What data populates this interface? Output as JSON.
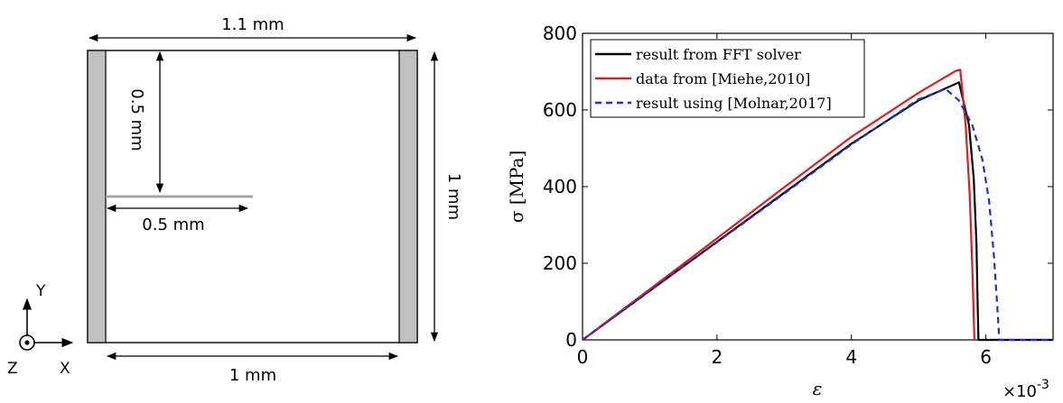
{
  "diagram": {
    "top_width_label": "1.1 mm",
    "crack_height_label": "0.5 mm",
    "crack_length_label": "0.5 mm",
    "height_label": "1 mm",
    "bottom_width_label": "1 mm",
    "axes": {
      "y": "Y",
      "x": "X",
      "z": "Z"
    },
    "colors": {
      "grip": "#c0c0c0",
      "crack": "#a6a6a6",
      "outline": "#000000"
    }
  },
  "chart_data": {
    "type": "line",
    "xlabel": "ε",
    "ylabel": "σ [MPa]",
    "x_multiplier_label": "×10",
    "x_multiplier_exponent": "-3",
    "xlim": [
      0,
      7
    ],
    "ylim": [
      0,
      800
    ],
    "x_ticks": [
      0,
      2,
      4,
      6
    ],
    "y_ticks": [
      0,
      200,
      400,
      600,
      800
    ],
    "grid": false,
    "legend_position": "top-left",
    "series": [
      {
        "name": "result from FFT solver",
        "color": "#000000",
        "dash": "solid",
        "points": [
          [
            0,
            0
          ],
          [
            1,
            128
          ],
          [
            2,
            256
          ],
          [
            3,
            384
          ],
          [
            4,
            512
          ],
          [
            5,
            625
          ],
          [
            5.6,
            672
          ],
          [
            5.75,
            560
          ],
          [
            5.82,
            420
          ],
          [
            5.86,
            250
          ],
          [
            5.88,
            80
          ],
          [
            5.89,
            0
          ],
          [
            7,
            0
          ]
        ]
      },
      {
        "name": "data from [Miehe,2010]",
        "color": "#e41a1c",
        "dash": "solid",
        "points": [
          [
            0,
            0
          ],
          [
            1,
            132
          ],
          [
            2,
            265
          ],
          [
            3,
            398
          ],
          [
            4,
            530
          ],
          [
            5,
            645
          ],
          [
            5.55,
            702
          ],
          [
            5.62,
            705
          ],
          [
            5.7,
            560
          ],
          [
            5.76,
            380
          ],
          [
            5.8,
            180
          ],
          [
            5.83,
            0
          ]
        ]
      },
      {
        "name": "result using [Molnar,2017]",
        "color": "#1f2fd6",
        "dash": "dashed",
        "points": [
          [
            0,
            0
          ],
          [
            1,
            128
          ],
          [
            2,
            255
          ],
          [
            3,
            382
          ],
          [
            4,
            510
          ],
          [
            5,
            628
          ],
          [
            5.4,
            655
          ],
          [
            5.6,
            625
          ],
          [
            5.8,
            560
          ],
          [
            5.95,
            470
          ],
          [
            6.05,
            360
          ],
          [
            6.12,
            220
          ],
          [
            6.17,
            90
          ],
          [
            6.2,
            0
          ],
          [
            7,
            0
          ]
        ]
      }
    ]
  }
}
